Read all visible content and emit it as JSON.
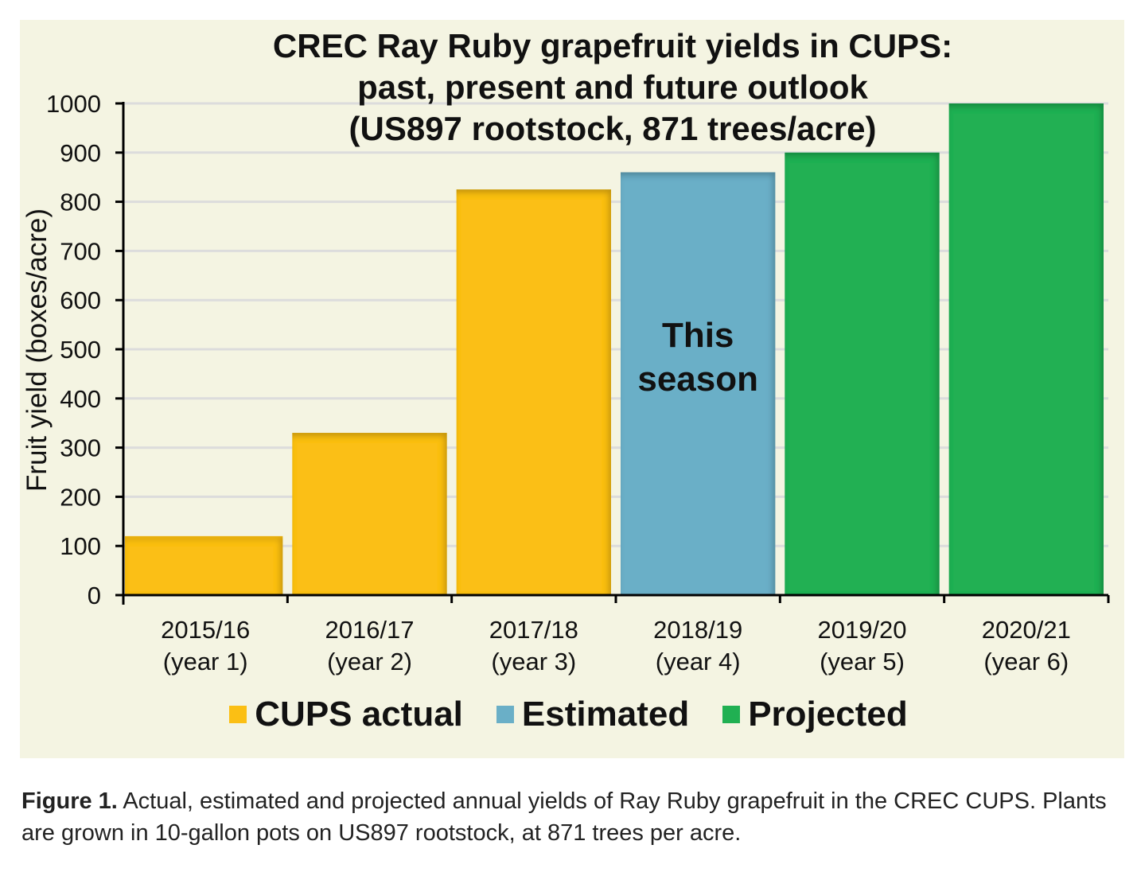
{
  "chart_data": {
    "type": "bar",
    "title": [
      "CREC Ray Ruby grapefruit yields in CUPS:",
      "past, present and future outlook",
      "(US897 rootstock, 871 trees/acre)"
    ],
    "ylabel": "Fruit yield (boxes/acre)",
    "xlabel": "",
    "ylim": [
      0,
      1000
    ],
    "yticks": [
      0,
      100,
      200,
      300,
      400,
      500,
      600,
      700,
      800,
      900,
      1000
    ],
    "grid": true,
    "categories": [
      [
        "2015/16",
        "(year 1)"
      ],
      [
        "2016/17",
        "(year 2)"
      ],
      [
        "2017/18",
        "(year 3)"
      ],
      [
        "2018/19",
        "(year 4)"
      ],
      [
        "2019/20",
        "(year 5)"
      ],
      [
        "2020/21",
        "(year 6)"
      ]
    ],
    "values": [
      120,
      330,
      825,
      860,
      900,
      1000
    ],
    "bar_series": [
      "CUPS actual",
      "CUPS actual",
      "CUPS actual",
      "Estimated",
      "Projected",
      "Projected"
    ],
    "legend": [
      {
        "name": "CUPS actual",
        "color": "#fbbf14"
      },
      {
        "name": "Estimated",
        "color": "#6aafc7"
      },
      {
        "name": "Projected",
        "color": "#20b052"
      }
    ],
    "legend_position": "bottom",
    "annotation": [
      "This",
      "season"
    ]
  },
  "caption": {
    "label": "Figure 1.",
    "text": " Actual, estimated and projected annual yields of Ray Ruby grapefruit in the CREC CUPS. Plants are grown in 10-gallon pots on US897 rootstock, at 871 trees per acre."
  }
}
